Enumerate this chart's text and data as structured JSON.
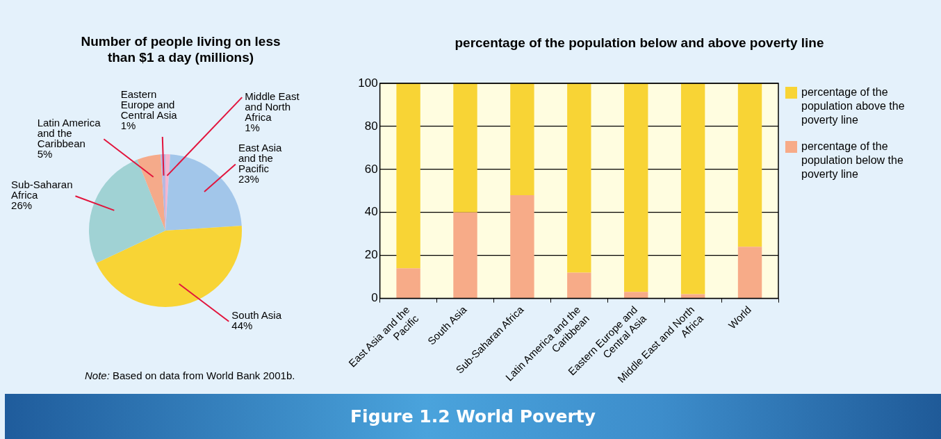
{
  "chart_data": [
    {
      "type": "pie",
      "title": "Number of people living on less than  $1 a day (millions)",
      "categories": [
        "Middle East and North Africa",
        "East Asia and the Pacific",
        "South Asia",
        "Sub-Saharan Africa",
        "Latin America and the Caribbean",
        "Eastern Europe and Central Asia"
      ],
      "values": [
        1,
        23,
        44,
        26,
        5,
        1
      ],
      "colors": [
        "#f4b6cf",
        "#a2c6ea",
        "#f8d435",
        "#a0d2d4",
        "#f5aa8a",
        "#b8b8e0"
      ],
      "value_labels": [
        "1%",
        "23%",
        "44%",
        "26%",
        "5%",
        "1%"
      ],
      "annotations": [
        "Note: Based on data from World Bank 2001b."
      ]
    },
    {
      "type": "bar",
      "title": "percentage of the population below and above poverty line",
      "stacked": true,
      "categories": [
        "East Asia and the Pacific",
        "South Asia",
        "Sub-Saharan Africa",
        "Latin America and the Caribbean",
        "Eastern Europe and Central Asia",
        "Middle East and North Africa",
        "World"
      ],
      "series": [
        {
          "name": "percentage of the population below the poverty line",
          "color": "#f7ab88",
          "values": [
            14,
            40,
            48,
            12,
            3,
            2,
            24
          ]
        },
        {
          "name": "percentage of the population above the poverty line",
          "color": "#f8d435",
          "values": [
            86,
            60,
            52,
            88,
            97,
            98,
            76
          ]
        }
      ],
      "ylim": [
        0,
        100
      ],
      "yticks": [
        0,
        20,
        40,
        60,
        80,
        100
      ],
      "grid": "y",
      "legend": "right",
      "annotations": [
        "Figure 1.2  World Poverty"
      ]
    }
  ]
}
